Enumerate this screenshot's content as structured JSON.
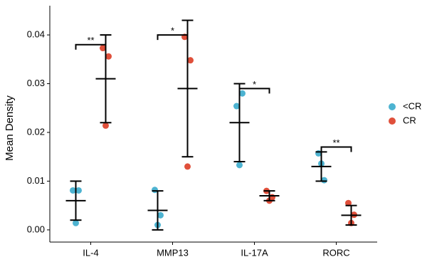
{
  "chart_data": {
    "type": "dotplot",
    "y_label": "Mean Density",
    "categories": [
      "IL-4",
      "MMP13",
      "IL-17A",
      "RORC"
    ],
    "ylim": [
      -0.0025,
      0.046
    ],
    "yticks": [
      {
        "value": 0,
        "label": "0.00"
      },
      {
        "value": 0.01,
        "label": "0.01"
      },
      {
        "value": 0.02,
        "label": "0.02"
      },
      {
        "value": 0.03,
        "label": "0.03"
      },
      {
        "value": 0.04,
        "label": "0.04"
      }
    ],
    "legend_position": "right",
    "series": [
      {
        "name": "<CR",
        "color": "#4db3d1",
        "points": [
          [
            0.0081,
            0.0081,
            0.0014
          ],
          [
            0.0082,
            0.003,
            0.001
          ],
          [
            0.0254,
            0.028,
            0.0133
          ],
          [
            0.0157,
            0.0102,
            0.0136
          ]
        ],
        "mean": [
          0.006,
          0.004,
          0.022,
          0.013
        ],
        "lower": [
          0.002,
          0.0,
          0.014,
          0.01
        ],
        "upper": [
          0.01,
          0.008,
          0.03,
          0.016
        ]
      },
      {
        "name": "CR",
        "color": "#e0503b",
        "points": [
          [
            0.0373,
            0.0356,
            0.0214
          ],
          [
            0.0396,
            0.0348,
            0.013
          ],
          [
            0.008,
            0.0067,
            0.006
          ],
          [
            0.0055,
            0.0031,
            0.0014
          ]
        ],
        "mean": [
          0.031,
          0.029,
          0.007,
          0.003
        ],
        "lower": [
          0.022,
          0.015,
          0.006,
          0.001
        ],
        "upper": [
          0.04,
          0.043,
          0.008,
          0.005
        ]
      }
    ],
    "annotations": [
      {
        "category": 0,
        "y": 0.038,
        "label": "**"
      },
      {
        "category": 1,
        "y": 0.04,
        "label": "*"
      },
      {
        "category": 2,
        "y": 0.029,
        "label": "*"
      },
      {
        "category": 3,
        "y": 0.017,
        "label": "**"
      }
    ]
  }
}
